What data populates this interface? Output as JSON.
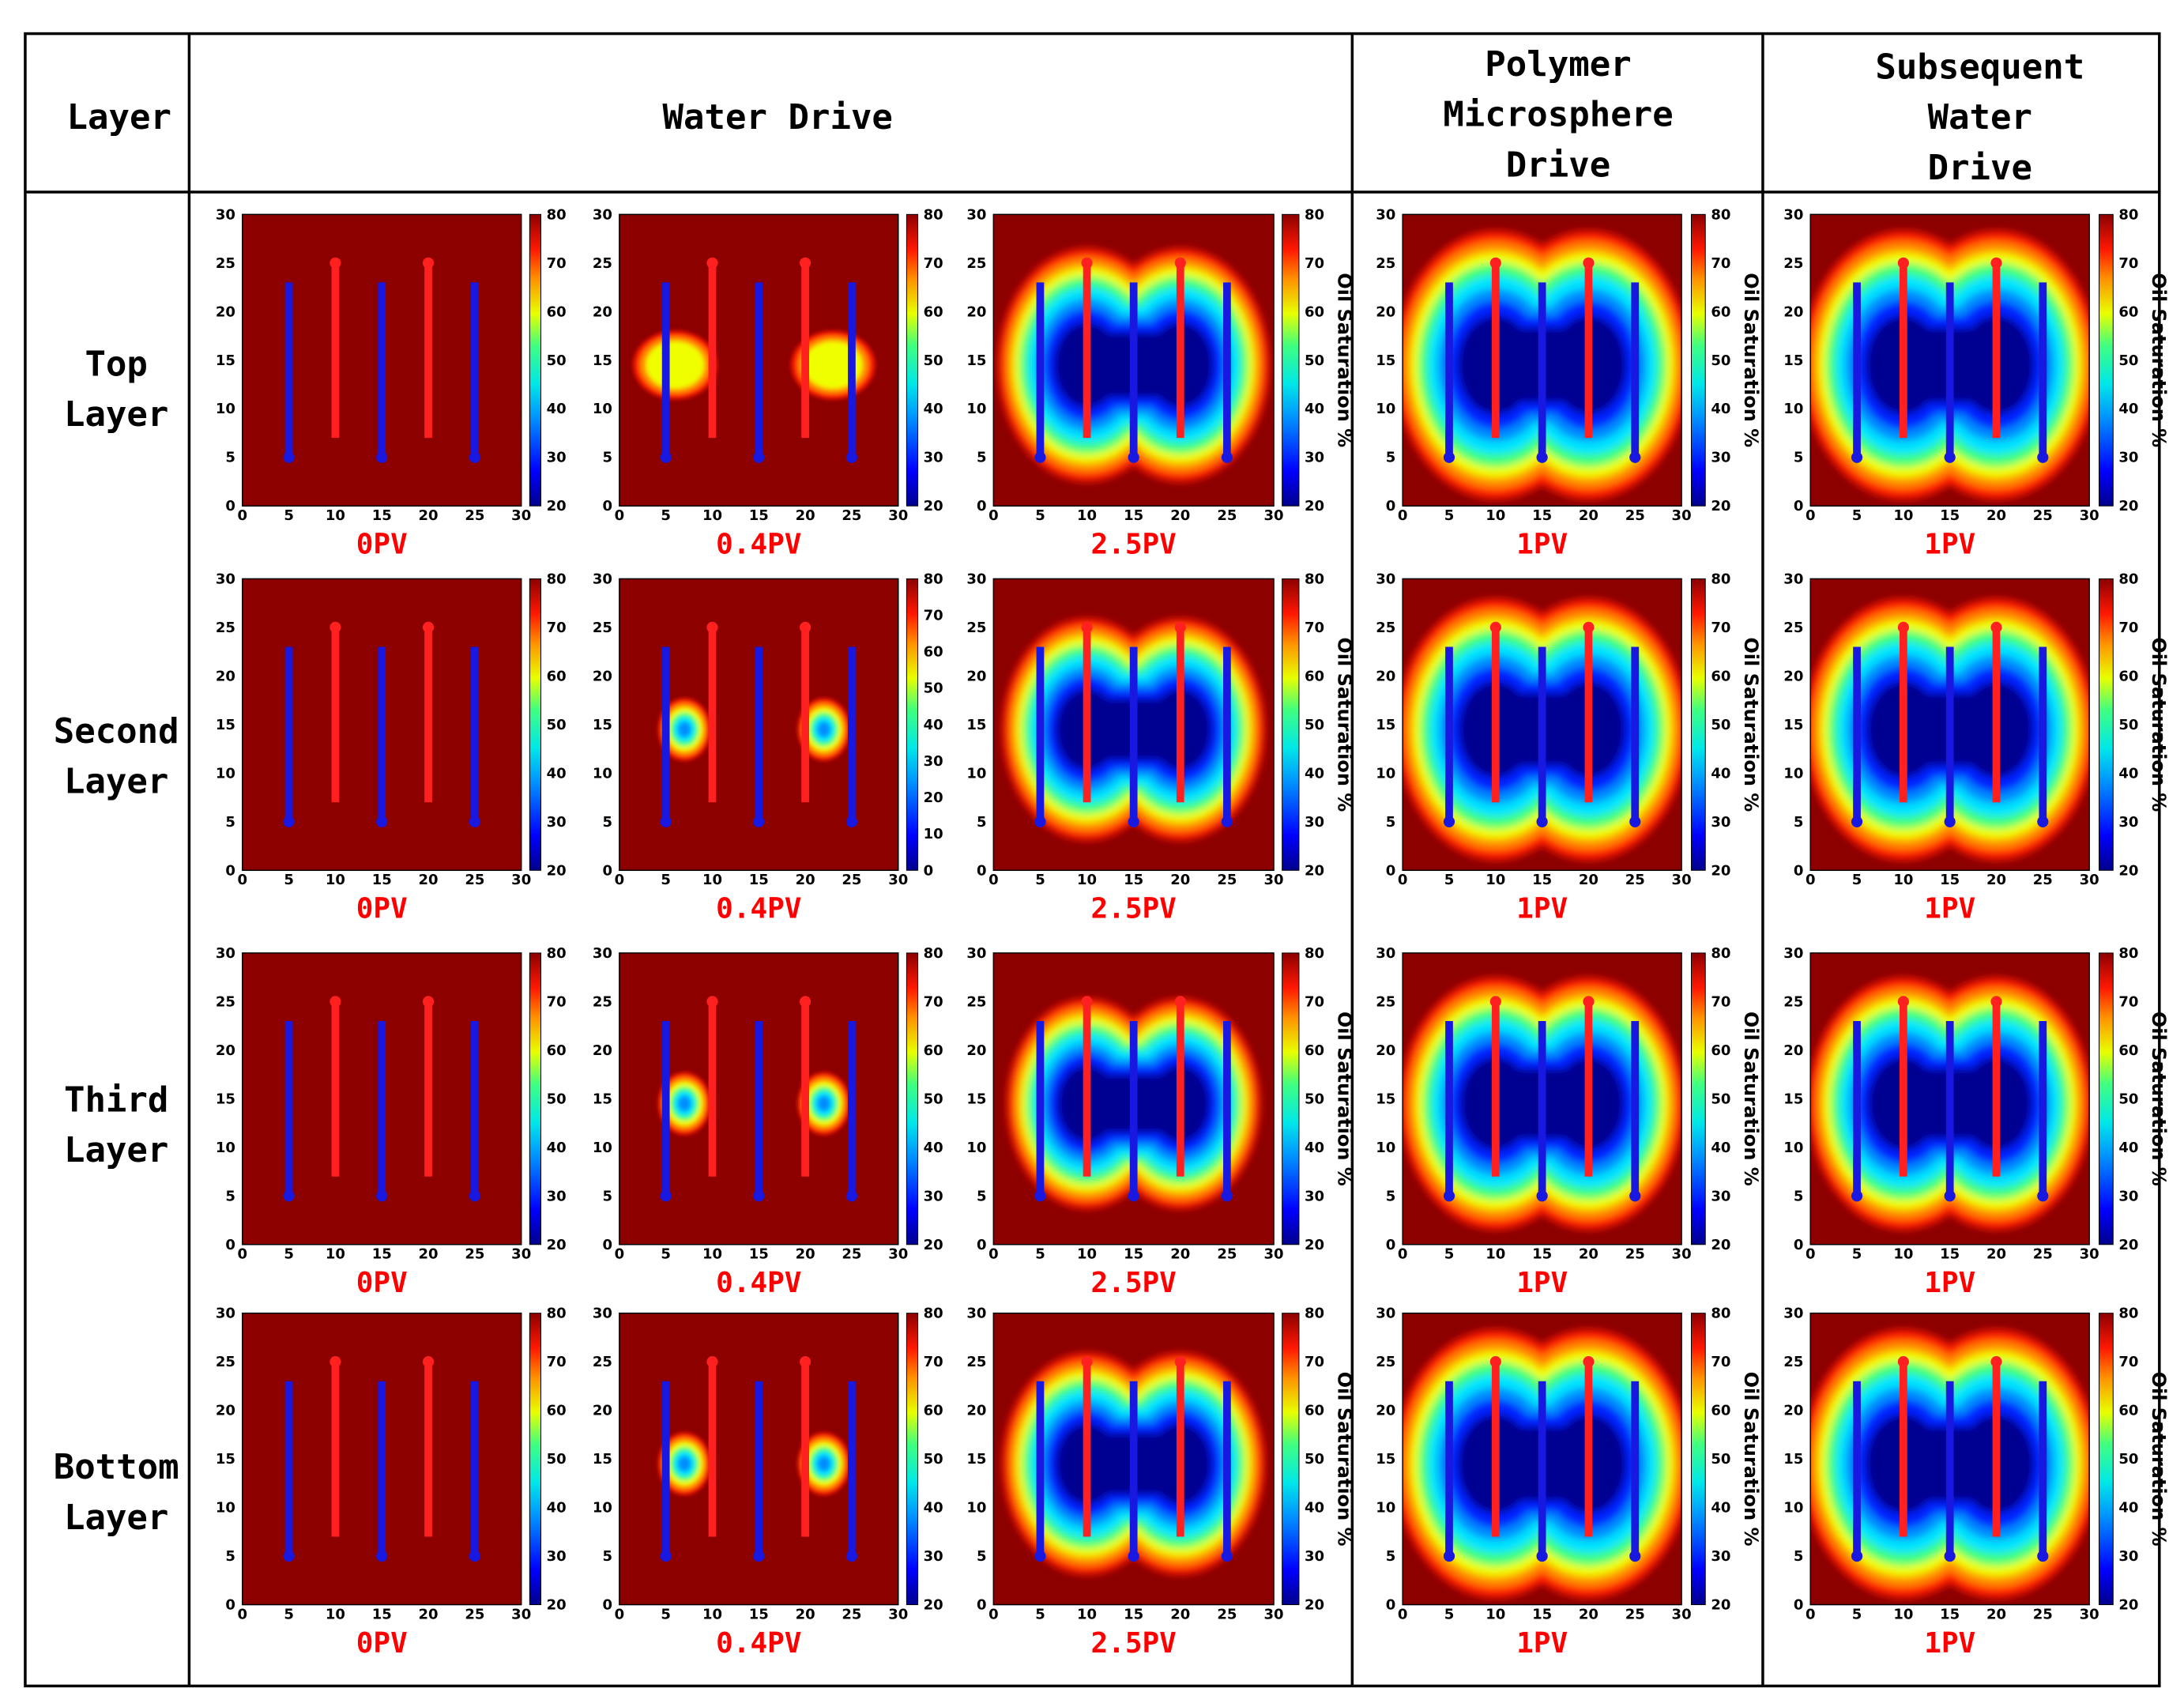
{
  "header": {
    "layer_label": "Layer",
    "groups": [
      {
        "id": "water",
        "lines": [
          "Water Drive"
        ]
      },
      {
        "id": "polymer",
        "lines": [
          "Polymer",
          "Microsphere",
          "Drive"
        ]
      },
      {
        "id": "subsequent",
        "lines": [
          "Subsequent",
          "Water",
          "Drive"
        ]
      }
    ]
  },
  "rows": [
    {
      "id": "top",
      "lines": [
        "Top",
        "Layer"
      ]
    },
    {
      "id": "second",
      "lines": [
        "Second",
        "Layer"
      ]
    },
    {
      "id": "third",
      "lines": [
        "Third",
        "Layer"
      ]
    },
    {
      "id": "bottom",
      "lines": [
        "Bottom",
        "Layer"
      ]
    }
  ],
  "stage_labels": [
    "0PV",
    "0.4PV",
    "2.5PV",
    "1PV",
    "1PV"
  ],
  "colorbar": {
    "label": "Oil Saturation %",
    "ticks": [
      20,
      30,
      40,
      50,
      60,
      70,
      80
    ],
    "ticks_second_row_second_col": [
      0,
      10,
      20,
      30,
      40,
      50,
      60,
      70,
      80
    ]
  },
  "colors": {
    "injector": "#ff2020",
    "producer": "#1818e0",
    "stage_label": "#ff0000",
    "grid": "#000000"
  },
  "chart_data": {
    "type": "heatmap",
    "title": "",
    "xlabel": "",
    "ylabel": "",
    "xlim": [
      0,
      30
    ],
    "ylim": [
      0,
      30
    ],
    "xticks": [
      0,
      5,
      10,
      15,
      20,
      25,
      30
    ],
    "yticks": [
      0,
      5,
      10,
      15,
      20,
      25,
      30
    ],
    "value_range": [
      20,
      80
    ],
    "wells": {
      "producers": [
        {
          "x": 5,
          "y_from": 5,
          "y_to": 23
        },
        {
          "x": 15,
          "y_from": 5,
          "y_to": 23
        },
        {
          "x": 25,
          "y_from": 5,
          "y_to": 23
        }
      ],
      "injectors": [
        {
          "x": 10,
          "y_from": 7,
          "y_to": 25
        },
        {
          "x": 20,
          "y_from": 7,
          "y_to": 25
        }
      ]
    },
    "stages": [
      "0PV",
      "0.4PV",
      "2.5PV",
      "1PV",
      "1PV"
    ],
    "layers": [
      "Top Layer",
      "Second Layer",
      "Third Layer",
      "Bottom Layer"
    ]
  }
}
